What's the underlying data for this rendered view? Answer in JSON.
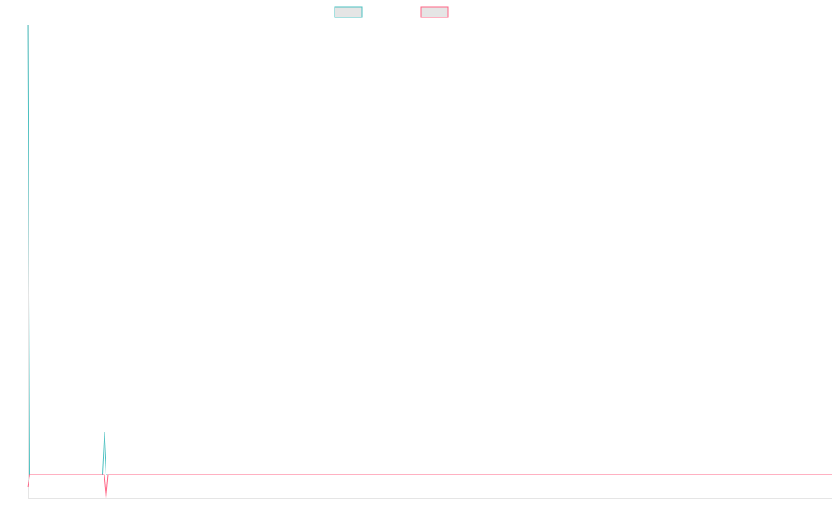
{
  "chart_data": {
    "type": "line",
    "title": "",
    "xlabel": "",
    "ylabel": "",
    "xlim": [
      0,
      462
    ],
    "ylim": [
      -50,
      950
    ],
    "grid": false,
    "legend": "top-center",
    "series": [
      {
        "color": "#4bc0c0",
        "x": [
          0,
          1,
          43,
          44,
          45,
          462
        ],
        "y": [
          950,
          0,
          0,
          90,
          0,
          0
        ]
      },
      {
        "color": "#ff6384",
        "x": [
          0,
          1,
          44,
          45,
          46,
          462
        ],
        "y": [
          -26,
          0,
          0,
          -50,
          0,
          0
        ]
      }
    ]
  }
}
